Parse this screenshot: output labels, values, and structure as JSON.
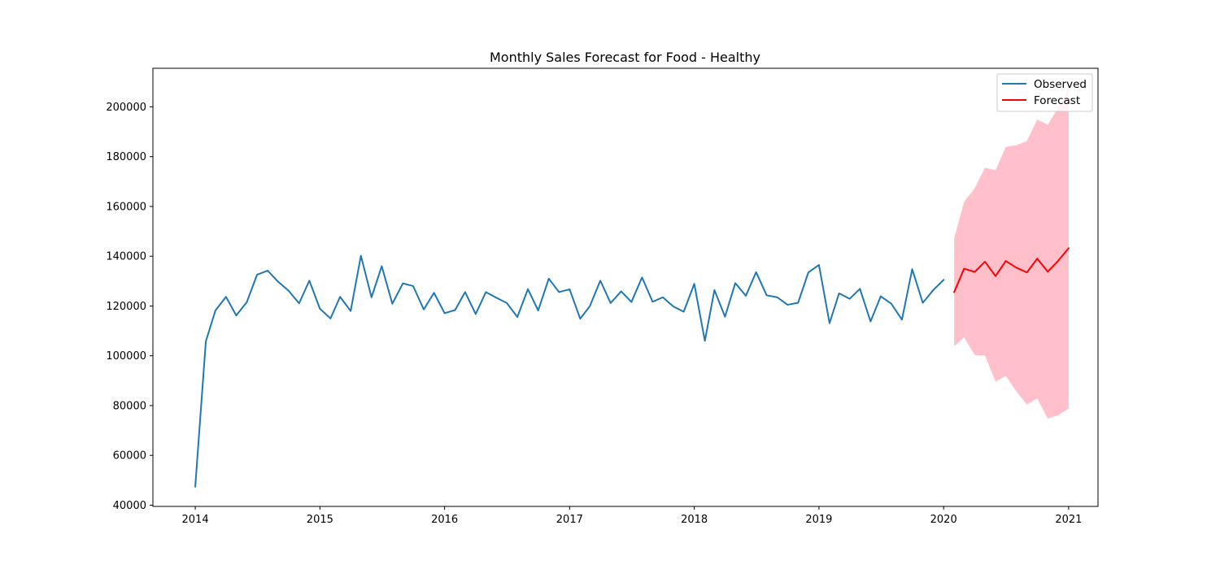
{
  "chart_data": {
    "type": "line",
    "title": "Monthly Sales Forecast for Food - Healthy",
    "xlabel": "",
    "ylabel": "",
    "x_range": [
      "2013-08-30",
      "2021-03-28"
    ],
    "ylim": [
      39500,
      215500
    ],
    "x_ticks": [
      "2014",
      "2015",
      "2016",
      "2017",
      "2018",
      "2019",
      "2020",
      "2021"
    ],
    "y_ticks": [
      "40000",
      "60000",
      "80000",
      "100000",
      "120000",
      "140000",
      "160000",
      "180000",
      "200000"
    ],
    "grid": false,
    "legend_position": "top-right",
    "legend": [
      "Observed",
      "Forecast"
    ],
    "colors": {
      "observed": "#1f77b4",
      "forecast": "#ff0000",
      "confidence_band": "#ffc0cb"
    },
    "series": [
      {
        "name": "Observed",
        "x": [
          "2014-01",
          "2014-02",
          "2014-03",
          "2014-04",
          "2014-05",
          "2014-06",
          "2014-07",
          "2014-08",
          "2014-09",
          "2014-10",
          "2014-11",
          "2014-12",
          "2015-01",
          "2015-02",
          "2015-03",
          "2015-04",
          "2015-05",
          "2015-06",
          "2015-07",
          "2015-08",
          "2015-09",
          "2015-10",
          "2015-11",
          "2015-12",
          "2016-01",
          "2016-02",
          "2016-03",
          "2016-04",
          "2016-05",
          "2016-06",
          "2016-07",
          "2016-08",
          "2016-09",
          "2016-10",
          "2016-11",
          "2016-12",
          "2017-01",
          "2017-02",
          "2017-03",
          "2017-04",
          "2017-05",
          "2017-06",
          "2017-07",
          "2017-08",
          "2017-09",
          "2017-10",
          "2017-11",
          "2017-12",
          "2018-01",
          "2018-02",
          "2018-03",
          "2018-04",
          "2018-05",
          "2018-06",
          "2018-07",
          "2018-08",
          "2018-09",
          "2018-10",
          "2018-11",
          "2018-12",
          "2019-01",
          "2019-02",
          "2019-03",
          "2019-04",
          "2019-05",
          "2019-06",
          "2019-07",
          "2019-08",
          "2019-09",
          "2019-10",
          "2019-11",
          "2019-12",
          "2020-01"
        ],
        "values": [
          47500,
          105800,
          118200,
          123700,
          116200,
          121600,
          132600,
          134200,
          129700,
          126200,
          121100,
          130200,
          118900,
          115000,
          123700,
          118000,
          140200,
          123500,
          136000,
          120900,
          129100,
          128000,
          118600,
          125300,
          117100,
          118400,
          125600,
          116800,
          125600,
          123300,
          121200,
          115600,
          126800,
          118200,
          131000,
          125600,
          126700,
          114900,
          119900,
          130200,
          121200,
          125900,
          121600,
          131500,
          121700,
          123500,
          119800,
          117700,
          128900,
          106000,
          126400,
          115700,
          129200,
          124100,
          133600,
          124300,
          123500,
          120500,
          121300,
          133500,
          136500,
          113100,
          125100,
          122900,
          126900,
          113800,
          123900,
          120900,
          114500,
          134800,
          121300,
          126300,
          130500
        ]
      },
      {
        "name": "Forecast",
        "x": [
          "2020-02",
          "2020-03",
          "2020-04",
          "2020-05",
          "2020-06",
          "2020-07",
          "2020-08",
          "2020-09",
          "2020-10",
          "2020-11",
          "2020-12",
          "2021-01"
        ],
        "values": [
          125600,
          135000,
          133700,
          137800,
          132000,
          138100,
          135400,
          133500,
          139000,
          133800,
          138100,
          143200
        ],
        "lower": [
          103900,
          107400,
          100300,
          100100,
          89600,
          92000,
          85700,
          80400,
          82900,
          74800,
          76100,
          78800
        ],
        "upper": [
          147200,
          161900,
          167300,
          175600,
          174500,
          183900,
          184600,
          186300,
          194900,
          192900,
          199500,
          207500
        ]
      }
    ]
  }
}
